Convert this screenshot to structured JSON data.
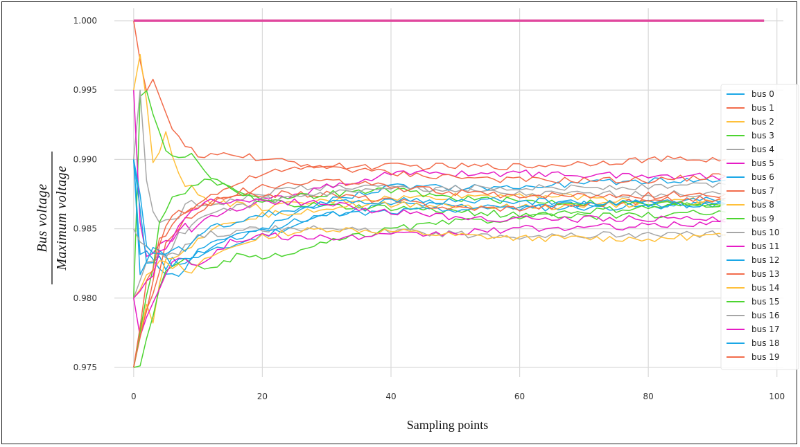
{
  "chart_data": {
    "type": "line",
    "title": "",
    "xlabel": "Sampling points",
    "ylabel_numerator": "Bus  voltage",
    "ylabel_denominator": "Maximum  voltage",
    "xlim": [
      -3,
      101
    ],
    "ylim": [
      0.9743,
      1.0009
    ],
    "xticks": [
      0,
      20,
      40,
      60,
      80,
      100
    ],
    "xtick_labels": [
      "0",
      "20",
      "40",
      "60",
      "80",
      "100"
    ],
    "yticks": [
      0.975,
      0.98,
      0.985,
      0.99,
      0.995,
      1.0
    ],
    "ytick_labels": [
      "0.975",
      "0.980",
      "0.985",
      "0.990",
      "0.995",
      "1.000"
    ],
    "grid": true,
    "legend_position": "right",
    "colors": [
      "#1aa7e6",
      "#f26b4a",
      "#ffc03a",
      "#4cd430",
      "#a6a6a6",
      "#e61bc5"
    ],
    "series": [
      {
        "name": "bus 0",
        "color": "#1aa7e6",
        "anchors": [
          [
            0,
            0.99
          ],
          [
            1,
            0.983
          ],
          [
            3,
            0.983
          ],
          [
            6,
            0.9815
          ],
          [
            10,
            0.983
          ],
          [
            20,
            0.9845
          ],
          [
            30,
            0.986
          ],
          [
            40,
            0.9868
          ],
          [
            60,
            0.9865
          ],
          [
            80,
            0.9866
          ],
          [
            92,
            0.9868
          ]
        ]
      },
      {
        "name": "bus 1",
        "color": "#f26b4a",
        "anchors": [
          [
            0,
            1.0
          ],
          [
            2,
            0.995
          ],
          [
            3,
            0.996
          ],
          [
            5,
            0.993
          ],
          [
            7,
            0.9915
          ],
          [
            10,
            0.99
          ],
          [
            15,
            0.9905
          ],
          [
            20,
            0.99
          ],
          [
            30,
            0.9895
          ],
          [
            40,
            0.9895
          ],
          [
            60,
            0.9895
          ],
          [
            80,
            0.99
          ],
          [
            92,
            0.99
          ]
        ]
      },
      {
        "name": "bus 2",
        "color": "#ffc03a",
        "anchors": [
          [
            0,
            0.995
          ],
          [
            1,
            0.9975
          ],
          [
            3,
            0.99
          ],
          [
            5,
            0.992
          ],
          [
            8,
            0.988
          ],
          [
            12,
            0.987
          ],
          [
            20,
            0.9865
          ],
          [
            30,
            0.987
          ],
          [
            40,
            0.9872
          ],
          [
            60,
            0.9875
          ],
          [
            80,
            0.987
          ],
          [
            92,
            0.987
          ]
        ]
      },
      {
        "name": "bus 3",
        "color": "#4cd430",
        "anchors": [
          [
            0,
            0.98
          ],
          [
            1,
            0.995
          ],
          [
            2,
            0.995
          ],
          [
            4,
            0.992
          ],
          [
            6,
            0.99
          ],
          [
            9,
            0.99
          ],
          [
            14,
            0.988
          ],
          [
            20,
            0.987
          ],
          [
            30,
            0.9866
          ],
          [
            40,
            0.9865
          ],
          [
            60,
            0.986
          ],
          [
            80,
            0.9865
          ],
          [
            92,
            0.9868
          ]
        ]
      },
      {
        "name": "bus 4",
        "color": "#a6a6a6",
        "anchors": [
          [
            0,
            0.99
          ],
          [
            1,
            0.995
          ],
          [
            2,
            0.988
          ],
          [
            4,
            0.985
          ],
          [
            8,
            0.9865
          ],
          [
            15,
            0.987
          ],
          [
            25,
            0.988
          ],
          [
            40,
            0.988
          ],
          [
            60,
            0.9875
          ],
          [
            80,
            0.9875
          ],
          [
            92,
            0.9875
          ]
        ]
      },
      {
        "name": "bus 5",
        "color": "#e61bc5",
        "anchors": [
          [
            0,
            0.995
          ],
          [
            1,
            0.985
          ],
          [
            2,
            0.983
          ],
          [
            4,
            0.984
          ],
          [
            8,
            0.985
          ],
          [
            12,
            0.986
          ],
          [
            20,
            0.987
          ],
          [
            30,
            0.988
          ],
          [
            40,
            0.989
          ],
          [
            60,
            0.989
          ],
          [
            80,
            0.9888
          ],
          [
            92,
            0.9888
          ]
        ]
      },
      {
        "name": "bus 6",
        "color": "#1aa7e6",
        "anchors": [
          [
            0,
            0.99
          ],
          [
            2,
            0.983
          ],
          [
            5,
            0.9825
          ],
          [
            8,
            0.983
          ],
          [
            12,
            0.984
          ],
          [
            20,
            0.985
          ],
          [
            30,
            0.987
          ],
          [
            40,
            0.988
          ],
          [
            60,
            0.988
          ],
          [
            80,
            0.9885
          ],
          [
            92,
            0.9885
          ]
        ]
      },
      {
        "name": "bus 7",
        "color": "#f26b4a",
        "anchors": [
          [
            0,
            0.975
          ],
          [
            2,
            0.979
          ],
          [
            4,
            0.984
          ],
          [
            6,
            0.986
          ],
          [
            10,
            0.987
          ],
          [
            15,
            0.988
          ],
          [
            20,
            0.989
          ],
          [
            30,
            0.9895
          ],
          [
            40,
            0.989
          ],
          [
            60,
            0.9885
          ],
          [
            80,
            0.9885
          ],
          [
            92,
            0.9888
          ]
        ]
      },
      {
        "name": "bus 8",
        "color": "#ffc03a",
        "anchors": [
          [
            0,
            0.975
          ],
          [
            2,
            0.98
          ],
          [
            3,
            0.9785
          ],
          [
            5,
            0.983
          ],
          [
            9,
            0.984
          ],
          [
            15,
            0.9855
          ],
          [
            20,
            0.986
          ],
          [
            30,
            0.9865
          ],
          [
            40,
            0.9868
          ],
          [
            60,
            0.9865
          ],
          [
            80,
            0.9868
          ],
          [
            92,
            0.9868
          ]
        ]
      },
      {
        "name": "bus 9",
        "color": "#4cd430",
        "anchors": [
          [
            0,
            0.975
          ],
          [
            1,
            0.9748
          ],
          [
            2,
            0.977
          ],
          [
            4,
            0.981
          ],
          [
            8,
            0.983
          ],
          [
            12,
            0.982
          ],
          [
            16,
            0.983
          ],
          [
            20,
            0.9828
          ],
          [
            25,
            0.9833
          ],
          [
            30,
            0.984
          ],
          [
            40,
            0.985
          ],
          [
            50,
            0.9855
          ],
          [
            60,
            0.9858
          ],
          [
            80,
            0.986
          ],
          [
            92,
            0.9862
          ]
        ]
      },
      {
        "name": "bus 10",
        "color": "#a6a6a6",
        "anchors": [
          [
            0,
            0.98
          ],
          [
            2,
            0.983
          ],
          [
            5,
            0.983
          ],
          [
            10,
            0.9845
          ],
          [
            20,
            0.985
          ],
          [
            30,
            0.985
          ],
          [
            40,
            0.9848
          ],
          [
            50,
            0.9846
          ],
          [
            60,
            0.9845
          ],
          [
            80,
            0.9846
          ],
          [
            92,
            0.9846
          ]
        ]
      },
      {
        "name": "bus 11",
        "color": "#e61bc5",
        "anchors": [
          [
            0,
            0.98
          ],
          [
            1,
            0.977
          ],
          [
            3,
            0.98
          ],
          [
            6,
            0.983
          ],
          [
            10,
            0.9825
          ],
          [
            15,
            0.984
          ],
          [
            20,
            0.9845
          ],
          [
            30,
            0.9843
          ],
          [
            40,
            0.9845
          ],
          [
            50,
            0.9847
          ],
          [
            60,
            0.985
          ],
          [
            80,
            0.9852
          ],
          [
            92,
            0.9855
          ]
        ]
      },
      {
        "name": "bus 12",
        "color": "#1aa7e6",
        "anchors": [
          [
            0,
            0.99
          ],
          [
            1,
            0.982
          ],
          [
            3,
            0.984
          ],
          [
            6,
            0.982
          ],
          [
            9,
            0.983
          ],
          [
            13,
            0.984
          ],
          [
            20,
            0.985
          ],
          [
            30,
            0.986
          ],
          [
            40,
            0.9862
          ],
          [
            60,
            0.9866
          ],
          [
            80,
            0.987
          ],
          [
            92,
            0.9872
          ]
        ]
      },
      {
        "name": "bus 13",
        "color": "#f26b4a",
        "anchors": [
          [
            0,
            0.975
          ],
          [
            2,
            0.979
          ],
          [
            5,
            0.984
          ],
          [
            8,
            0.9855
          ],
          [
            12,
            0.987
          ],
          [
            20,
            0.9875
          ],
          [
            30,
            0.9875
          ],
          [
            40,
            0.987
          ],
          [
            50,
            0.9865
          ],
          [
            60,
            0.9865
          ],
          [
            80,
            0.987
          ],
          [
            92,
            0.9872
          ]
        ]
      },
      {
        "name": "bus 14",
        "color": "#ffc03a",
        "anchors": [
          [
            0,
            0.98
          ],
          [
            2,
            0.982
          ],
          [
            5,
            0.983
          ],
          [
            8,
            0.9815
          ],
          [
            12,
            0.983
          ],
          [
            20,
            0.9845
          ],
          [
            30,
            0.985
          ],
          [
            40,
            0.9848
          ],
          [
            50,
            0.9845
          ],
          [
            60,
            0.9843
          ],
          [
            80,
            0.9843
          ],
          [
            92,
            0.9845
          ]
        ]
      },
      {
        "name": "bus 15",
        "color": "#4cd430",
        "anchors": [
          [
            0,
            0.975
          ],
          [
            2,
            0.98
          ],
          [
            4,
            0.985
          ],
          [
            6,
            0.987
          ],
          [
            8,
            0.988
          ],
          [
            12,
            0.9885
          ],
          [
            20,
            0.987
          ],
          [
            30,
            0.9875
          ],
          [
            40,
            0.9878
          ],
          [
            50,
            0.9872
          ],
          [
            60,
            0.987
          ],
          [
            80,
            0.9868
          ],
          [
            92,
            0.9868
          ]
        ]
      },
      {
        "name": "bus 16",
        "color": "#a6a6a6",
        "anchors": [
          [
            0,
            0.985
          ],
          [
            2,
            0.984
          ],
          [
            5,
            0.983
          ],
          [
            8,
            0.985
          ],
          [
            12,
            0.986
          ],
          [
            20,
            0.987
          ],
          [
            30,
            0.9875
          ],
          [
            40,
            0.9878
          ],
          [
            60,
            0.988
          ],
          [
            80,
            0.988
          ],
          [
            92,
            0.9882
          ]
        ]
      },
      {
        "name": "bus 17",
        "color": "#e61bc5",
        "anchors": [
          [
            0,
            0.98
          ],
          [
            2,
            0.981
          ],
          [
            5,
            0.984
          ],
          [
            8,
            0.986
          ],
          [
            12,
            0.987
          ],
          [
            20,
            0.987
          ],
          [
            30,
            0.9868
          ],
          [
            40,
            0.9862
          ],
          [
            50,
            0.9858
          ],
          [
            60,
            0.9857
          ],
          [
            80,
            0.9857
          ],
          [
            92,
            0.9857
          ]
        ]
      },
      {
        "name": "bus 18",
        "color": "#1aa7e6",
        "anchors": [
          [
            0,
            0.99
          ],
          [
            2,
            0.984
          ],
          [
            5,
            0.983
          ],
          [
            8,
            0.9835
          ],
          [
            12,
            0.985
          ],
          [
            20,
            0.986
          ],
          [
            30,
            0.9868
          ],
          [
            40,
            0.987
          ],
          [
            60,
            0.987
          ],
          [
            80,
            0.9868
          ],
          [
            92,
            0.9868
          ]
        ]
      },
      {
        "name": "bus 19",
        "color": "#f26b4a",
        "anchors": [
          [
            0,
            0.975
          ],
          [
            2,
            0.981
          ],
          [
            4,
            0.984
          ],
          [
            7,
            0.986
          ],
          [
            10,
            0.9865
          ],
          [
            15,
            0.9875
          ],
          [
            20,
            0.988
          ],
          [
            30,
            0.9885
          ],
          [
            40,
            0.988
          ],
          [
            50,
            0.9876
          ],
          [
            60,
            0.9874
          ],
          [
            80,
            0.9874
          ],
          [
            92,
            0.9875
          ]
        ]
      },
      {
        "name": "",
        "color": "#e0489e",
        "anchors": [
          [
            0,
            1.0
          ],
          [
            98,
            1.0
          ]
        ],
        "noise": 0,
        "width": 3.5,
        "legend": false
      }
    ]
  }
}
